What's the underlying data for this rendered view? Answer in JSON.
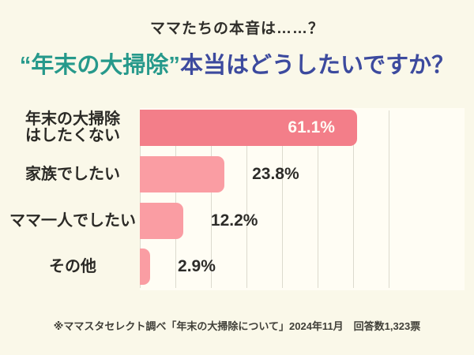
{
  "page": {
    "background_color": "#faf8e9",
    "text_color": "#2f2e2a",
    "subtitle": "ママたちの本音は……？",
    "title": {
      "highlight": "“年末の大掃除”",
      "rest": "本当はどうしたいですか？",
      "highlight_color": "#26998b",
      "rest_color": "#3c4a9e"
    },
    "footnote": "※ママスタセレクト調べ「年末の大掃除について」2024年11月　回答数1,323票"
  },
  "chart_data": {
    "type": "bar",
    "orientation": "horizontal",
    "title": "“年末の大掃除”本当はどうしたいですか？",
    "subtitle": "ママたちの本音は……？",
    "categories": [
      "年末の大掃除はしたくない",
      "家族でしたい",
      "ママ一人でしたい",
      "その他"
    ],
    "label_lines": [
      [
        "年末の大掃除",
        "はしたくない"
      ],
      [
        "家族でしたい"
      ],
      [
        "ママ一人でしたい"
      ],
      [
        "その他"
      ]
    ],
    "values": [
      61.1,
      23.8,
      12.2,
      2.9
    ],
    "value_labels": [
      "61.1%",
      "23.8%",
      "12.2%",
      "2.9%"
    ],
    "unit": "%",
    "xlim": [
      0,
      90
    ],
    "gridlines": [
      0,
      10,
      20,
      30,
      40,
      50,
      60,
      70
    ],
    "grid": true,
    "legend": false,
    "bar_colors": [
      "#f37e89",
      "#fa9da3",
      "#fa9da3",
      "#fa9da3"
    ],
    "value_label_styles": [
      "inside-white",
      "outside-dark",
      "outside-dark",
      "outside-dark"
    ],
    "plot_background": "#fffdf4",
    "gridline_color": "#dcdace",
    "source_note": "※ママスタセレクト調べ「年末の大掃除について」2024年11月　回答数1,323票"
  }
}
